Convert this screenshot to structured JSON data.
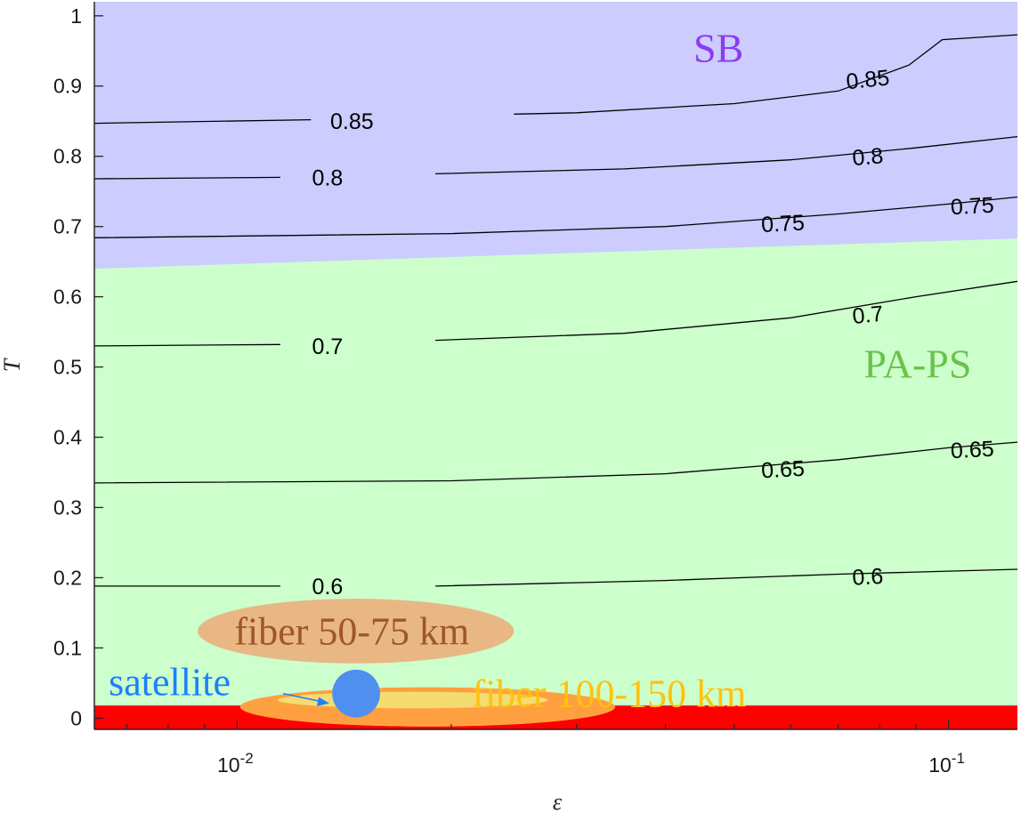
{
  "chart_data": {
    "type": "contour",
    "xlabel": "ε",
    "ylabel": "T",
    "xscale": "log",
    "xlim": [
      0.0063,
      0.125
    ],
    "ylim": [
      -0.016,
      1.02
    ],
    "x_ticks": [
      {
        "value": 0.01,
        "base": "10",
        "exp": "-2"
      },
      {
        "value": 0.1,
        "base": "10",
        "exp": "-1"
      }
    ],
    "y_ticks": [
      0,
      0.1,
      0.2,
      0.3,
      0.4,
      0.5,
      0.6,
      0.7,
      0.8,
      0.9,
      1
    ],
    "regions": [
      {
        "name": "SB",
        "color": "#ccccff",
        "text_color": "#8b3cf0",
        "boundary": [
          [
            0.0063,
            0.64
          ],
          [
            0.125,
            0.683
          ]
        ]
      },
      {
        "name": "PA-PS",
        "color": "#ccffcc",
        "text_color": "#6cc24a"
      },
      {
        "color": "#ff0000",
        "ymax": 0.018
      }
    ],
    "contours": [
      {
        "level": 0.6,
        "points": [
          [
            0.0063,
            0.188
          ],
          [
            0.0115,
            0.188
          ]
        ],
        "points2": [
          [
            0.019,
            0.188
          ],
          [
            0.04,
            0.196
          ],
          [
            0.07,
            0.205
          ],
          [
            0.125,
            0.212
          ]
        ]
      },
      {
        "level": 0.65,
        "points": [
          [
            0.0063,
            0.335
          ],
          [
            0.02,
            0.338
          ],
          [
            0.04,
            0.348
          ],
          [
            0.07,
            0.368
          ],
          [
            0.1,
            0.385
          ],
          [
            0.125,
            0.393
          ]
        ]
      },
      {
        "level": 0.7,
        "points": [
          [
            0.0063,
            0.53
          ],
          [
            0.0115,
            0.532
          ]
        ],
        "points2": [
          [
            0.019,
            0.538
          ],
          [
            0.035,
            0.548
          ],
          [
            0.06,
            0.57
          ],
          [
            0.09,
            0.6
          ],
          [
            0.125,
            0.622
          ]
        ]
      },
      {
        "level": 0.75,
        "points": [
          [
            0.0063,
            0.684
          ],
          [
            0.02,
            0.69
          ],
          [
            0.04,
            0.7
          ],
          [
            0.07,
            0.718
          ],
          [
            0.1,
            0.732
          ],
          [
            0.125,
            0.742
          ]
        ]
      },
      {
        "level": 0.8,
        "points": [
          [
            0.0063,
            0.768
          ],
          [
            0.0115,
            0.77
          ]
        ],
        "points2": [
          [
            0.019,
            0.775
          ],
          [
            0.035,
            0.782
          ],
          [
            0.06,
            0.795
          ],
          [
            0.09,
            0.812
          ],
          [
            0.125,
            0.828
          ]
        ]
      },
      {
        "level": 0.85,
        "points": [
          [
            0.0063,
            0.847
          ],
          [
            0.0127,
            0.852
          ]
        ],
        "points2": [
          [
            0.0245,
            0.86
          ],
          [
            0.03,
            0.862
          ],
          [
            0.05,
            0.875
          ],
          [
            0.07,
            0.893
          ],
          [
            0.088,
            0.93
          ],
          [
            0.098,
            0.966
          ],
          [
            0.125,
            0.973
          ]
        ]
      }
    ],
    "contour_labels": [
      {
        "text": "0.85",
        "x": 0.0145,
        "y": 0.85,
        "rot": 0
      },
      {
        "text": "0.85",
        "x": 0.077,
        "y": 0.91,
        "rot": -6
      },
      {
        "text": "0.8",
        "x": 0.0134,
        "y": 0.77,
        "rot": 0
      },
      {
        "text": "0.8",
        "x": 0.077,
        "y": 0.8,
        "rot": -5
      },
      {
        "text": "0.75",
        "x": 0.0585,
        "y": 0.705,
        "rot": -3
      },
      {
        "text": "0.75",
        "x": 0.108,
        "y": 0.73,
        "rot": -3
      },
      {
        "text": "0.7",
        "x": 0.0134,
        "y": 0.53,
        "rot": 0
      },
      {
        "text": "0.7",
        "x": 0.077,
        "y": 0.575,
        "rot": -6
      },
      {
        "text": "0.65",
        "x": 0.0585,
        "y": 0.355,
        "rot": -3
      },
      {
        "text": "0.65",
        "x": 0.108,
        "y": 0.383,
        "rot": -3
      },
      {
        "text": "0.6",
        "x": 0.0134,
        "y": 0.188,
        "rot": 0
      },
      {
        "text": "0.6",
        "x": 0.077,
        "y": 0.202,
        "rot": -3
      }
    ],
    "annotations": [
      {
        "name": "fiber-50-75",
        "text": "fiber 50-75 km",
        "fill": "#e8b784",
        "text_color": "#a0562a",
        "center": [
          0.0145,
          0.124
        ],
        "x_extent": [
          0.0088,
          0.0245
        ],
        "y_half": 0.046
      },
      {
        "name": "fiber-100-150",
        "text": "fiber 100-150 km",
        "fill": "#ffa040",
        "highlight": "#f2e67a",
        "text_color": "#ffc20e",
        "center": [
          0.0185,
          0.016
        ],
        "x_extent": [
          0.0101,
          0.034
        ],
        "y_half": 0.028
      },
      {
        "name": "satellite",
        "text": "satellite",
        "fill": "#4f8ff0",
        "text_color": "#1c7fff",
        "center": [
          0.0147,
          0.035
        ],
        "radius_y": 0.034
      }
    ]
  }
}
